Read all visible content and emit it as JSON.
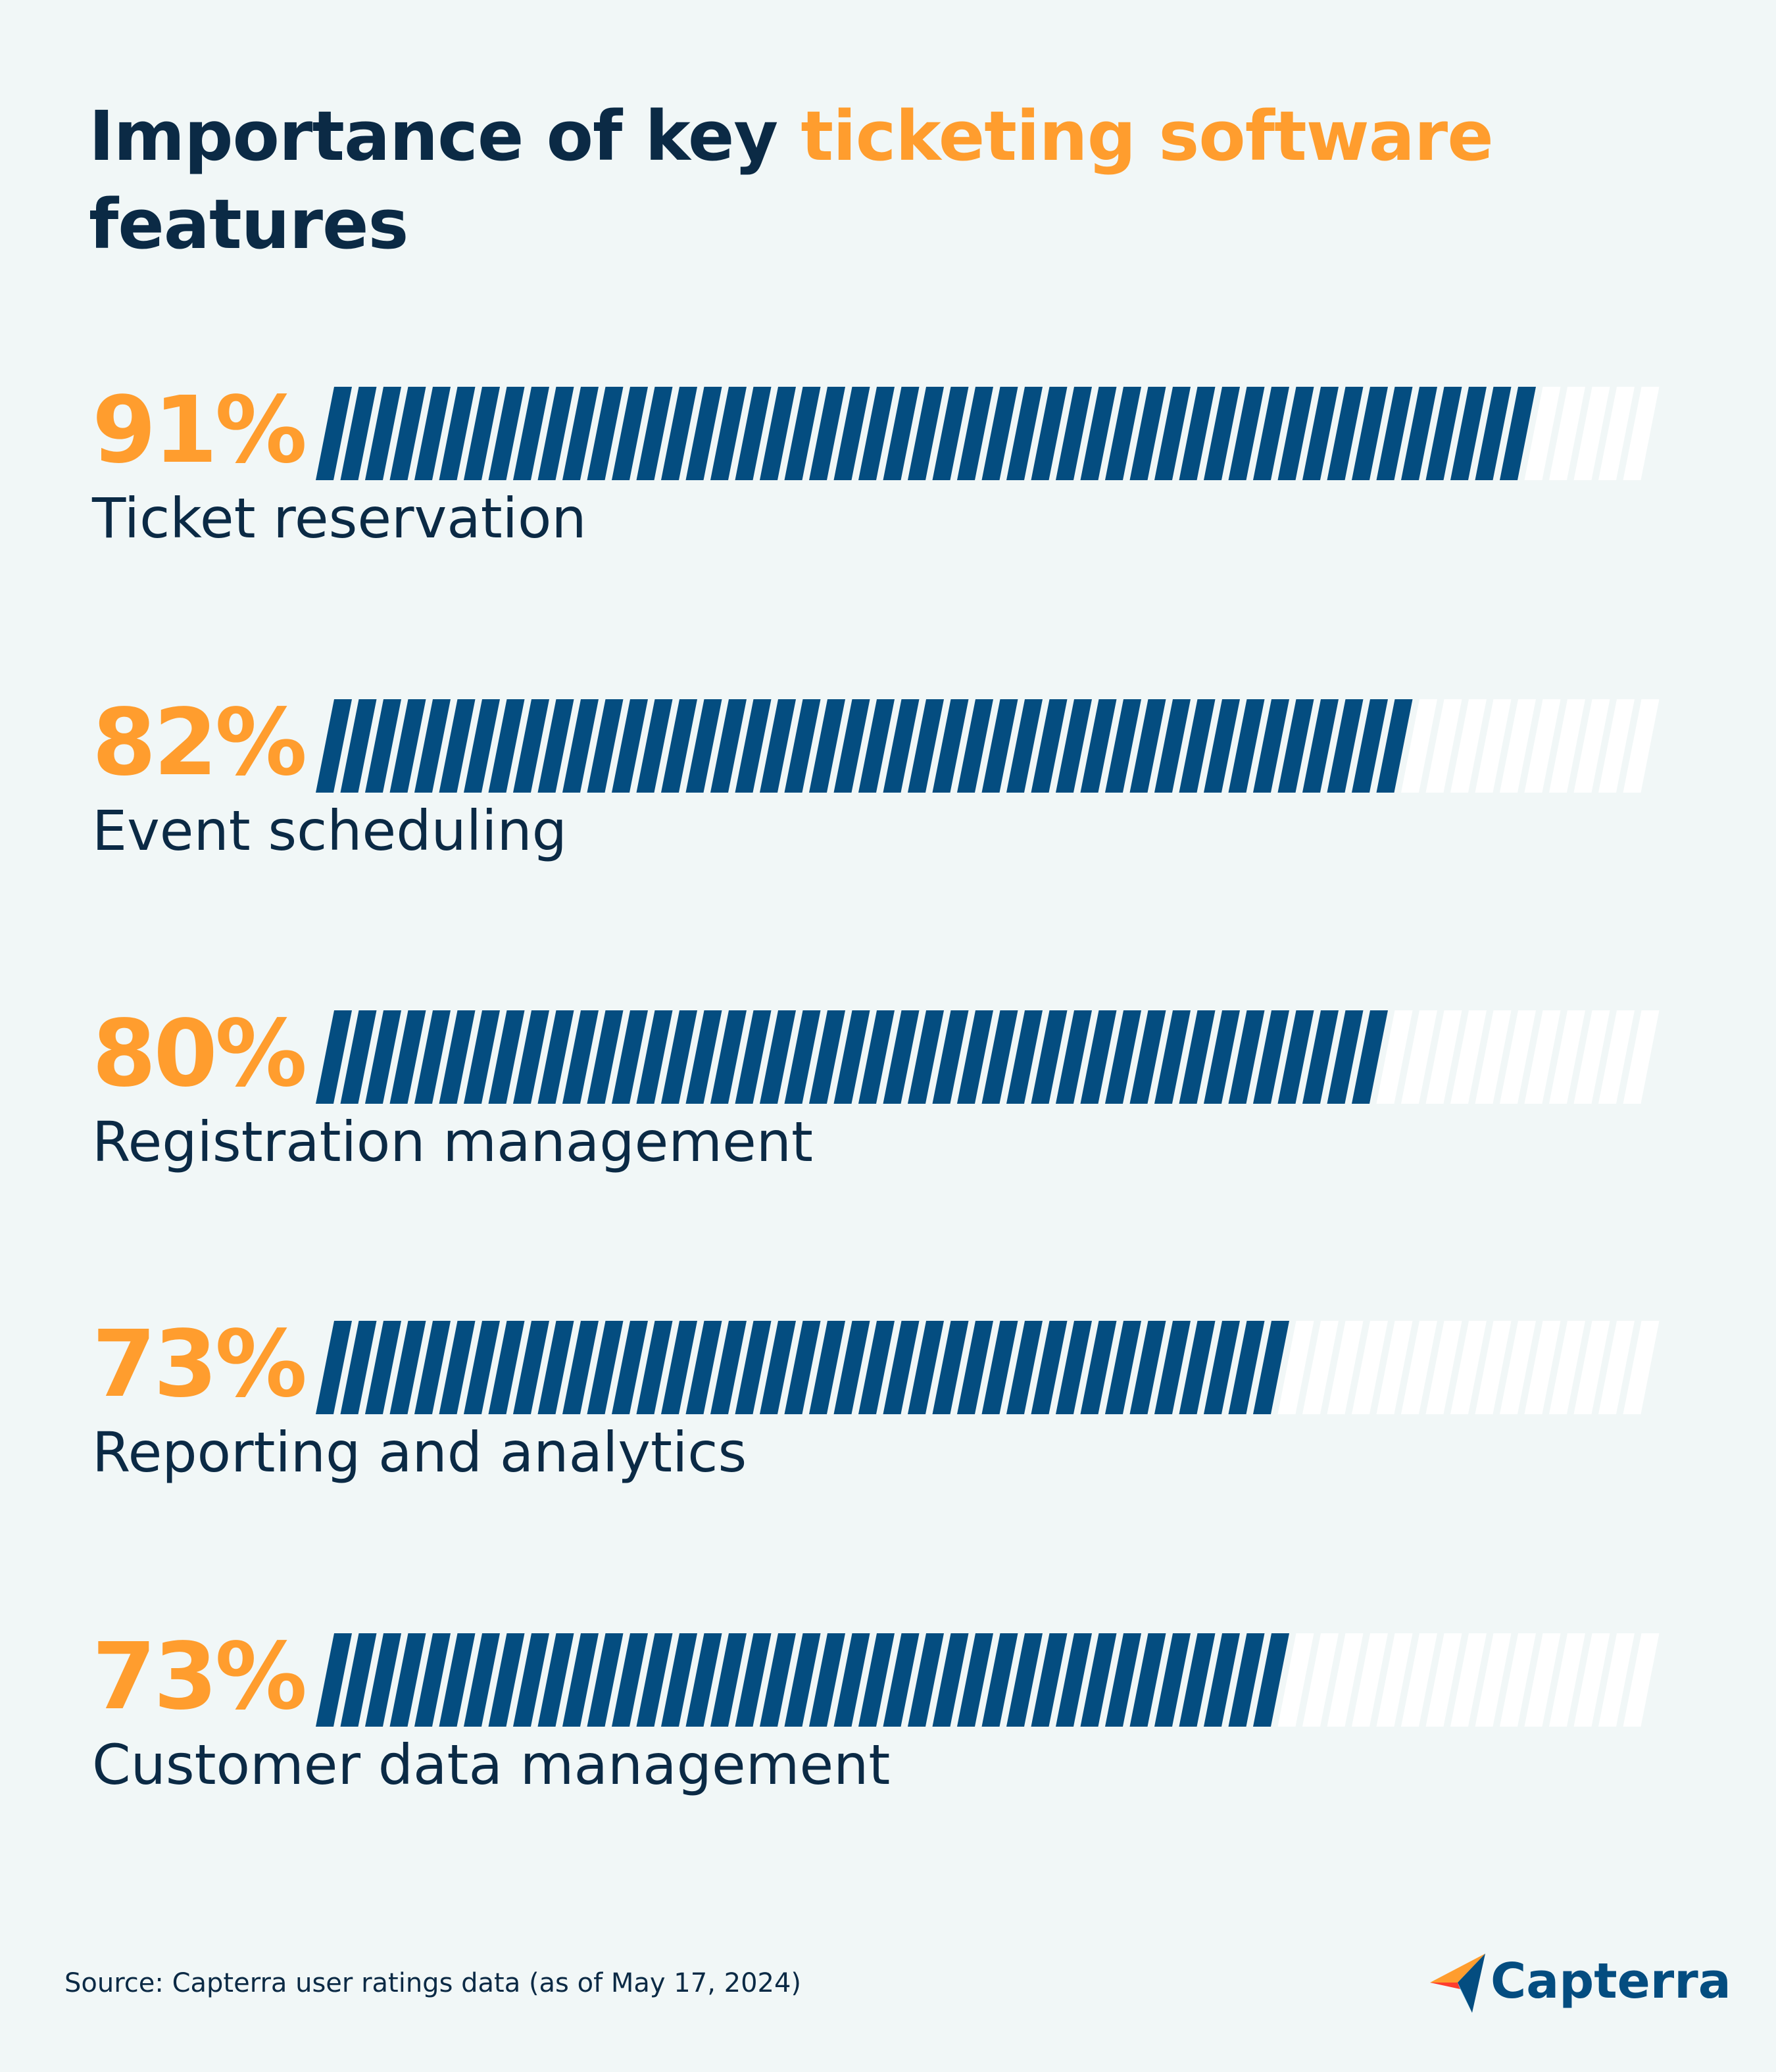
{
  "title": {
    "part1": "Importance of key ",
    "accent": "ticketing software",
    "part2": " features"
  },
  "chart_data": {
    "type": "bar",
    "orientation": "horizontal",
    "title": "Importance of key ticketing software features",
    "categories": [
      "Ticket reservation",
      "Event scheduling",
      "Registration management",
      "Reporting and analytics",
      "Customer data management"
    ],
    "values": [
      91,
      82,
      80,
      73,
      73
    ],
    "value_labels": [
      "91%",
      "82%",
      "80%",
      "73%",
      "73%"
    ],
    "unit": "%",
    "xlim": [
      0,
      100
    ],
    "grid": false,
    "legend": "none"
  },
  "colors": {
    "background": "#f1f7f7",
    "title": "#0b2a45",
    "accent": "#ff9d2e",
    "bar_fill": "#044d80",
    "bar_empty": "#ffffff",
    "stripe_gap": "#f1f7f7"
  },
  "source": "Source: Capterra user ratings data (as of May 17, 2024)",
  "logo": {
    "icon": "capterra-arrow-icon",
    "text": "Capterra"
  }
}
